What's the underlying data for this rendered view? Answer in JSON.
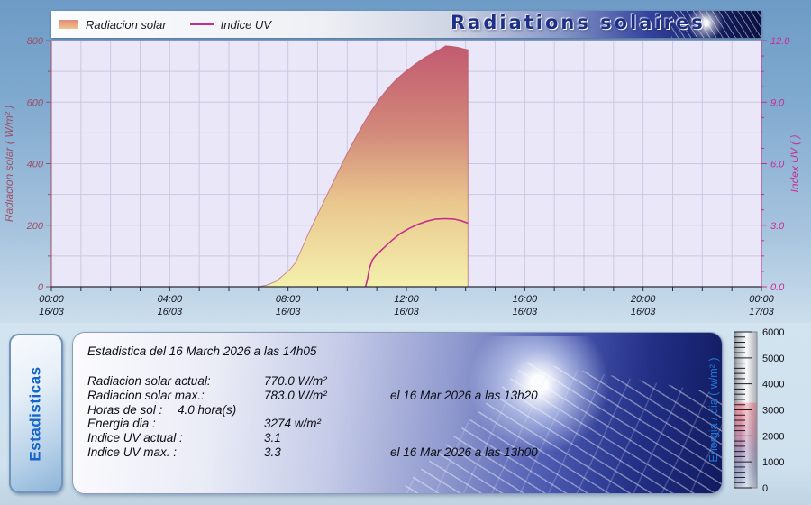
{
  "header": {
    "title": "Radiations solaires",
    "legend": {
      "radiation": "Radiacion solar",
      "uv": "Indice UV"
    }
  },
  "chart_data": {
    "type": "area",
    "title": "Radiations solaires",
    "x_range_hours": [
      0,
      24
    ],
    "x_label_times": [
      "00:00",
      "04:00",
      "08:00",
      "12:00",
      "16:00",
      "20:00",
      "00:00"
    ],
    "x_label_dates": [
      "16/03",
      "16/03",
      "16/03",
      "16/03",
      "16/03",
      "16/03",
      "17/03"
    ],
    "plot_bg": "#eae7f8",
    "grid": {
      "x_step_hours": 1,
      "y_step": 100,
      "color": "#cdc7e4"
    },
    "left_axis": {
      "label": "Radiacion solar ( W/m² )",
      "min": 0,
      "max": 800,
      "tick_step": 100,
      "label_step": 200,
      "color": "#9d4f66"
    },
    "right_axis": {
      "label": "Index UV ( )",
      "min": 0,
      "max": 12,
      "tick_step": 0.75,
      "label_step": 3,
      "color": "#c92d96"
    },
    "x_axis_color": "#2a2a33",
    "series": [
      {
        "name": "Radiacion solar",
        "type": "area",
        "axis": "left",
        "edge_color": "rgba(176,74,96,0.6)",
        "gradient": [
          [
            "0%",
            "#c25a70"
          ],
          [
            "35%",
            "#d2887a"
          ],
          [
            "65%",
            "#e9c78e"
          ],
          [
            "100%",
            "#f4f0ac"
          ]
        ],
        "points": [
          [
            7.0,
            0
          ],
          [
            7.3,
            6
          ],
          [
            7.6,
            18
          ],
          [
            7.85,
            38
          ],
          [
            8.05,
            55
          ],
          [
            8.25,
            78
          ],
          [
            8.45,
            120
          ],
          [
            8.7,
            175
          ],
          [
            9.0,
            235
          ],
          [
            9.3,
            295
          ],
          [
            9.6,
            355
          ],
          [
            9.9,
            415
          ],
          [
            10.2,
            470
          ],
          [
            10.5,
            523
          ],
          [
            10.8,
            570
          ],
          [
            11.1,
            612
          ],
          [
            11.4,
            648
          ],
          [
            11.7,
            678
          ],
          [
            12.0,
            702
          ],
          [
            12.3,
            724
          ],
          [
            12.6,
            744
          ],
          [
            12.9,
            760
          ],
          [
            13.1,
            770
          ],
          [
            13.33,
            783
          ],
          [
            13.55,
            781
          ],
          [
            13.75,
            778
          ],
          [
            13.95,
            773
          ],
          [
            14.08,
            770
          ]
        ]
      },
      {
        "name": "Indice UV",
        "type": "line",
        "axis": "right",
        "color": "#c52f8c",
        "points": [
          [
            10.62,
            0
          ],
          [
            10.68,
            0.35
          ],
          [
            10.75,
            0.9
          ],
          [
            10.85,
            1.3
          ],
          [
            10.95,
            1.5
          ],
          [
            11.2,
            1.85
          ],
          [
            11.5,
            2.25
          ],
          [
            11.8,
            2.6
          ],
          [
            12.1,
            2.85
          ],
          [
            12.4,
            3.05
          ],
          [
            12.7,
            3.2
          ],
          [
            13.0,
            3.3
          ],
          [
            13.3,
            3.32
          ],
          [
            13.6,
            3.3
          ],
          [
            13.85,
            3.22
          ],
          [
            14.08,
            3.1
          ]
        ]
      }
    ]
  },
  "stats": {
    "tab_label": "Estadisticas",
    "heading": "Estadistica del 16 March 2026 a las 14h05",
    "rows": [
      {
        "label": "Radiacion solar actual:",
        "value": "770.0 W/m²",
        "when": ""
      },
      {
        "label": "Radiacion solar max.:",
        "value": "783.0 W/m²",
        "when": "el 16 Mar 2026 a las 13h20"
      },
      {
        "label": "Horas de sol :",
        "value": "4.0 hora(s)",
        "when": ""
      },
      {
        "label": "Energia dia :",
        "value": "3274 w/m²",
        "when": ""
      },
      {
        "label": "Indice UV actual :",
        "value": "3.1",
        "when": ""
      },
      {
        "label": "Indice UV max. :",
        "value": "3.3",
        "when": "el 16 Mar 2026 a las 13h00"
      }
    ]
  },
  "gauge": {
    "label": "Energia / dia ( w/m² )",
    "label_color": "#1c79d8",
    "min": 0,
    "max": 6000,
    "value": 3274,
    "major_step": 1000,
    "minor_step": 200,
    "tick_color": "#1c1c22",
    "text_color": "#101014",
    "fill_gradient": [
      [
        "0%",
        "#ef939c"
      ],
      [
        "30%",
        "#d2879e"
      ],
      [
        "55%",
        "#a78db6"
      ],
      [
        "78%",
        "#9aa3c6"
      ],
      [
        "100%",
        "#b9c5da"
      ]
    ],
    "body_gradient": [
      [
        "0%",
        "#9aa0aa"
      ],
      [
        "55%",
        "#f4f5f7"
      ],
      [
        "100%",
        "#c6cad2"
      ]
    ]
  }
}
